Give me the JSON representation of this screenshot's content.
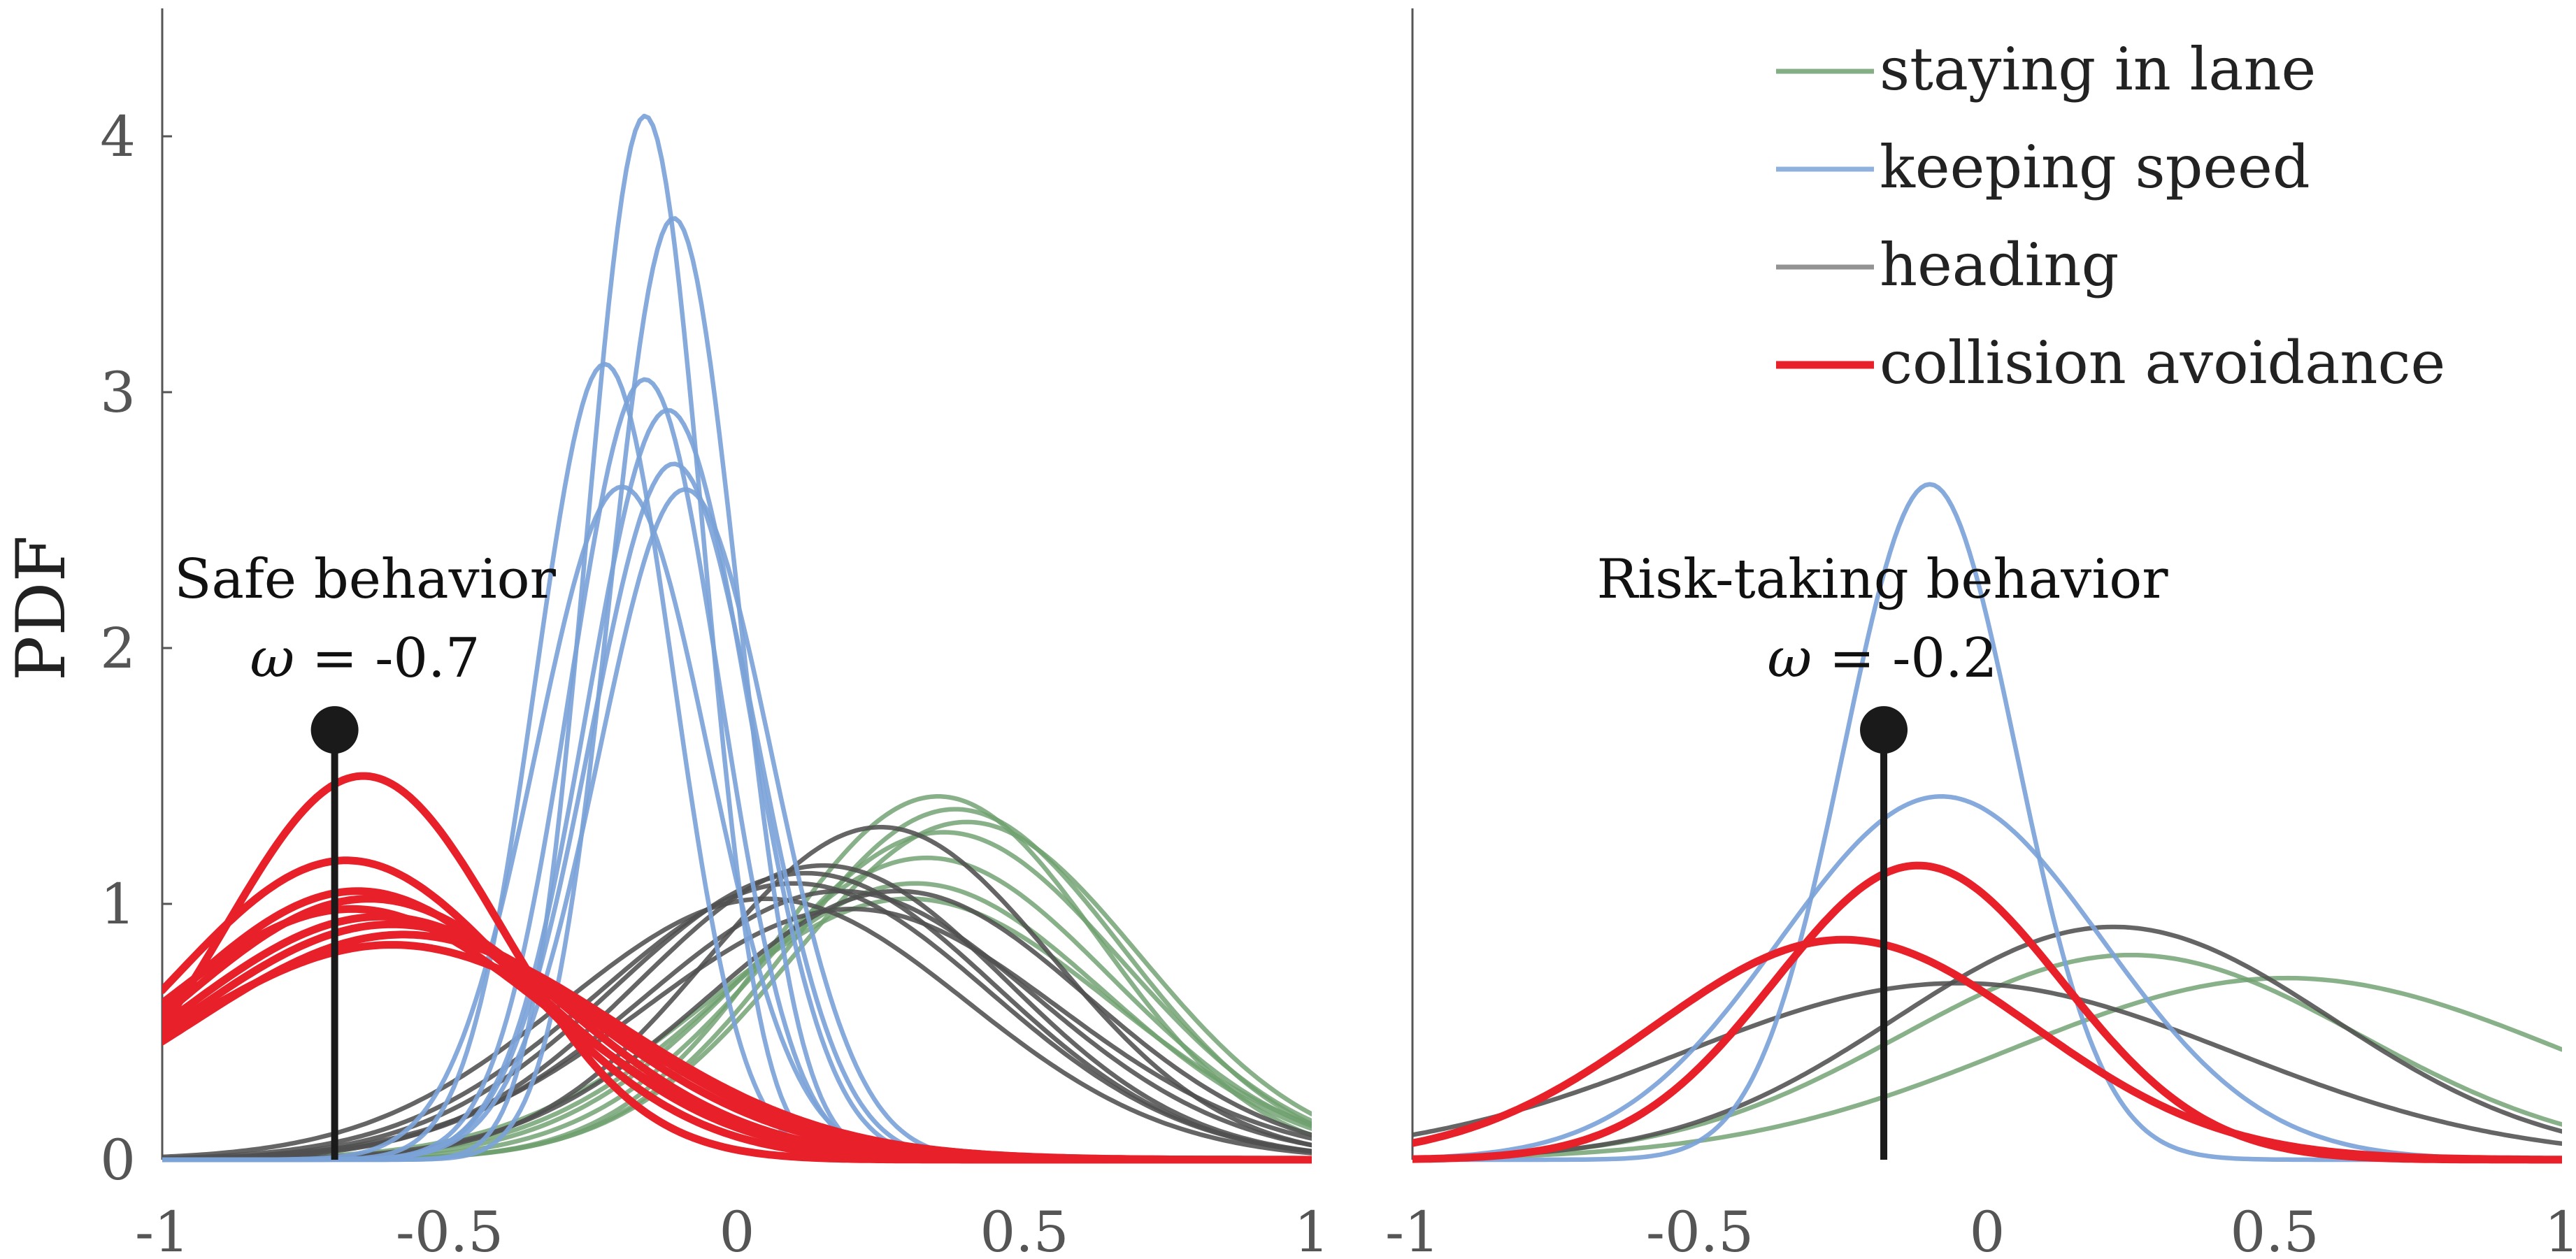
{
  "chart_data": [
    {
      "type": "line",
      "panel": "left",
      "title": "",
      "xlabel": "",
      "ylabel": "PDF",
      "xlim": [
        -1,
        1
      ],
      "ylim": [
        0,
        4.5
      ],
      "xticks": [
        "-1",
        "-0.5",
        "0",
        "0.5",
        "1"
      ],
      "yticks": [
        "0",
        "1",
        "2",
        "3",
        "4"
      ],
      "annotation": {
        "line1": "Safe behavior",
        "symbol": "ω",
        "line2": " = -0.7",
        "marker_x": -0.7,
        "marker_y": 1.68
      },
      "series": [
        {
          "name": "staying in lane",
          "color": "#6fa06f",
          "curves": [
            {
              "mean": 0.35,
              "std": 0.28,
              "peak": 1.42
            },
            {
              "mean": 0.38,
              "std": 0.29,
              "peak": 1.37
            },
            {
              "mean": 0.4,
              "std": 0.3,
              "peak": 1.32
            },
            {
              "mean": 0.36,
              "std": 0.31,
              "peak": 1.28
            },
            {
              "mean": 0.33,
              "std": 0.32,
              "peak": 1.18
            },
            {
              "mean": 0.31,
              "std": 0.33,
              "peak": 1.08
            },
            {
              "mean": 0.3,
              "std": 0.35,
              "peak": 1.02
            }
          ]
        },
        {
          "name": "keeping speed",
          "color": "#7ba3d8",
          "curves": [
            {
              "mean": -0.16,
              "std": 0.1,
              "peak": 4.08
            },
            {
              "mean": -0.11,
              "std": 0.11,
              "peak": 3.68
            },
            {
              "mean": -0.23,
              "std": 0.12,
              "peak": 3.11
            },
            {
              "mean": -0.16,
              "std": 0.13,
              "peak": 3.05
            },
            {
              "mean": -0.12,
              "std": 0.14,
              "peak": 2.93
            },
            {
              "mean": -0.11,
              "std": 0.145,
              "peak": 2.72
            },
            {
              "mean": -0.2,
              "std": 0.15,
              "peak": 2.63
            },
            {
              "mean": -0.09,
              "std": 0.15,
              "peak": 2.62
            }
          ]
        },
        {
          "name": "heading",
          "color": "#505050",
          "curves": [
            {
              "mean": 0.25,
              "std": 0.3,
              "peak": 1.3
            },
            {
              "mean": 0.15,
              "std": 0.32,
              "peak": 1.15
            },
            {
              "mean": 0.12,
              "std": 0.33,
              "peak": 1.12
            },
            {
              "mean": 0.1,
              "std": 0.34,
              "peak": 1.08
            },
            {
              "mean": 0.18,
              "std": 0.34,
              "peak": 1.05
            },
            {
              "mean": 0.05,
              "std": 0.35,
              "peak": 1.02
            },
            {
              "mean": 0.28,
              "std": 0.33,
              "peak": 1.05
            },
            {
              "mean": 0.2,
              "std": 0.36,
              "peak": 0.98
            }
          ]
        },
        {
          "name": "collision avoidance",
          "color": "#e8202a",
          "curves": [
            {
              "mean": -0.65,
              "std": 0.24,
              "peak": 1.5
            },
            {
              "mean": -0.68,
              "std": 0.3,
              "peak": 1.17
            },
            {
              "mean": -0.66,
              "std": 0.32,
              "peak": 1.05
            },
            {
              "mean": -0.64,
              "std": 0.33,
              "peak": 1.02
            },
            {
              "mean": -0.67,
              "std": 0.34,
              "peak": 0.98
            },
            {
              "mean": -0.62,
              "std": 0.35,
              "peak": 0.95
            },
            {
              "mean": -0.6,
              "std": 0.36,
              "peak": 0.92
            },
            {
              "mean": -0.58,
              "std": 0.37,
              "peak": 0.88
            },
            {
              "mean": -0.6,
              "std": 0.38,
              "peak": 0.84
            }
          ]
        }
      ]
    },
    {
      "type": "line",
      "panel": "right",
      "title": "",
      "xlabel": "",
      "ylabel": "",
      "xlim": [
        -1,
        1
      ],
      "ylim": [
        0,
        4.5
      ],
      "xticks": [
        "-1",
        "-0.5",
        "0",
        "0.5",
        "1"
      ],
      "yticks": [],
      "annotation": {
        "line1": "Risk-taking behavior",
        "symbol": "ω",
        "line2": " = -0.2",
        "marker_x": -0.18,
        "marker_y": 1.68
      },
      "series": [
        {
          "name": "staying in lane",
          "color": "#6fa06f",
          "curves": [
            {
              "mean": 0.25,
              "std": 0.4,
              "peak": 0.8
            },
            {
              "mean": 0.52,
              "std": 0.48,
              "peak": 0.71
            }
          ]
        },
        {
          "name": "keeping speed",
          "color": "#7ba3d8",
          "curves": [
            {
              "mean": -0.1,
              "std": 0.15,
              "peak": 2.64
            },
            {
              "mean": -0.08,
              "std": 0.28,
              "peak": 1.42
            }
          ]
        },
        {
          "name": "heading",
          "color": "#505050",
          "curves": [
            {
              "mean": 0.22,
              "std": 0.38,
              "peak": 0.91
            },
            {
              "mean": -0.05,
              "std": 0.48,
              "peak": 0.69
            }
          ]
        },
        {
          "name": "collision avoidance",
          "color": "#e8202a",
          "curves": [
            {
              "mean": -0.12,
              "std": 0.25,
              "peak": 1.15
            },
            {
              "mean": -0.25,
              "std": 0.33,
              "peak": 0.86
            }
          ]
        }
      ]
    }
  ],
  "legend": {
    "position": "top-right",
    "entries": [
      {
        "label": "staying in lane",
        "color": "#6fa06f"
      },
      {
        "label": "keeping speed",
        "color": "#7ba3d8"
      },
      {
        "label": "heading",
        "color": "#808080"
      },
      {
        "label": "collision avoidance",
        "color": "#e8202a"
      }
    ]
  }
}
